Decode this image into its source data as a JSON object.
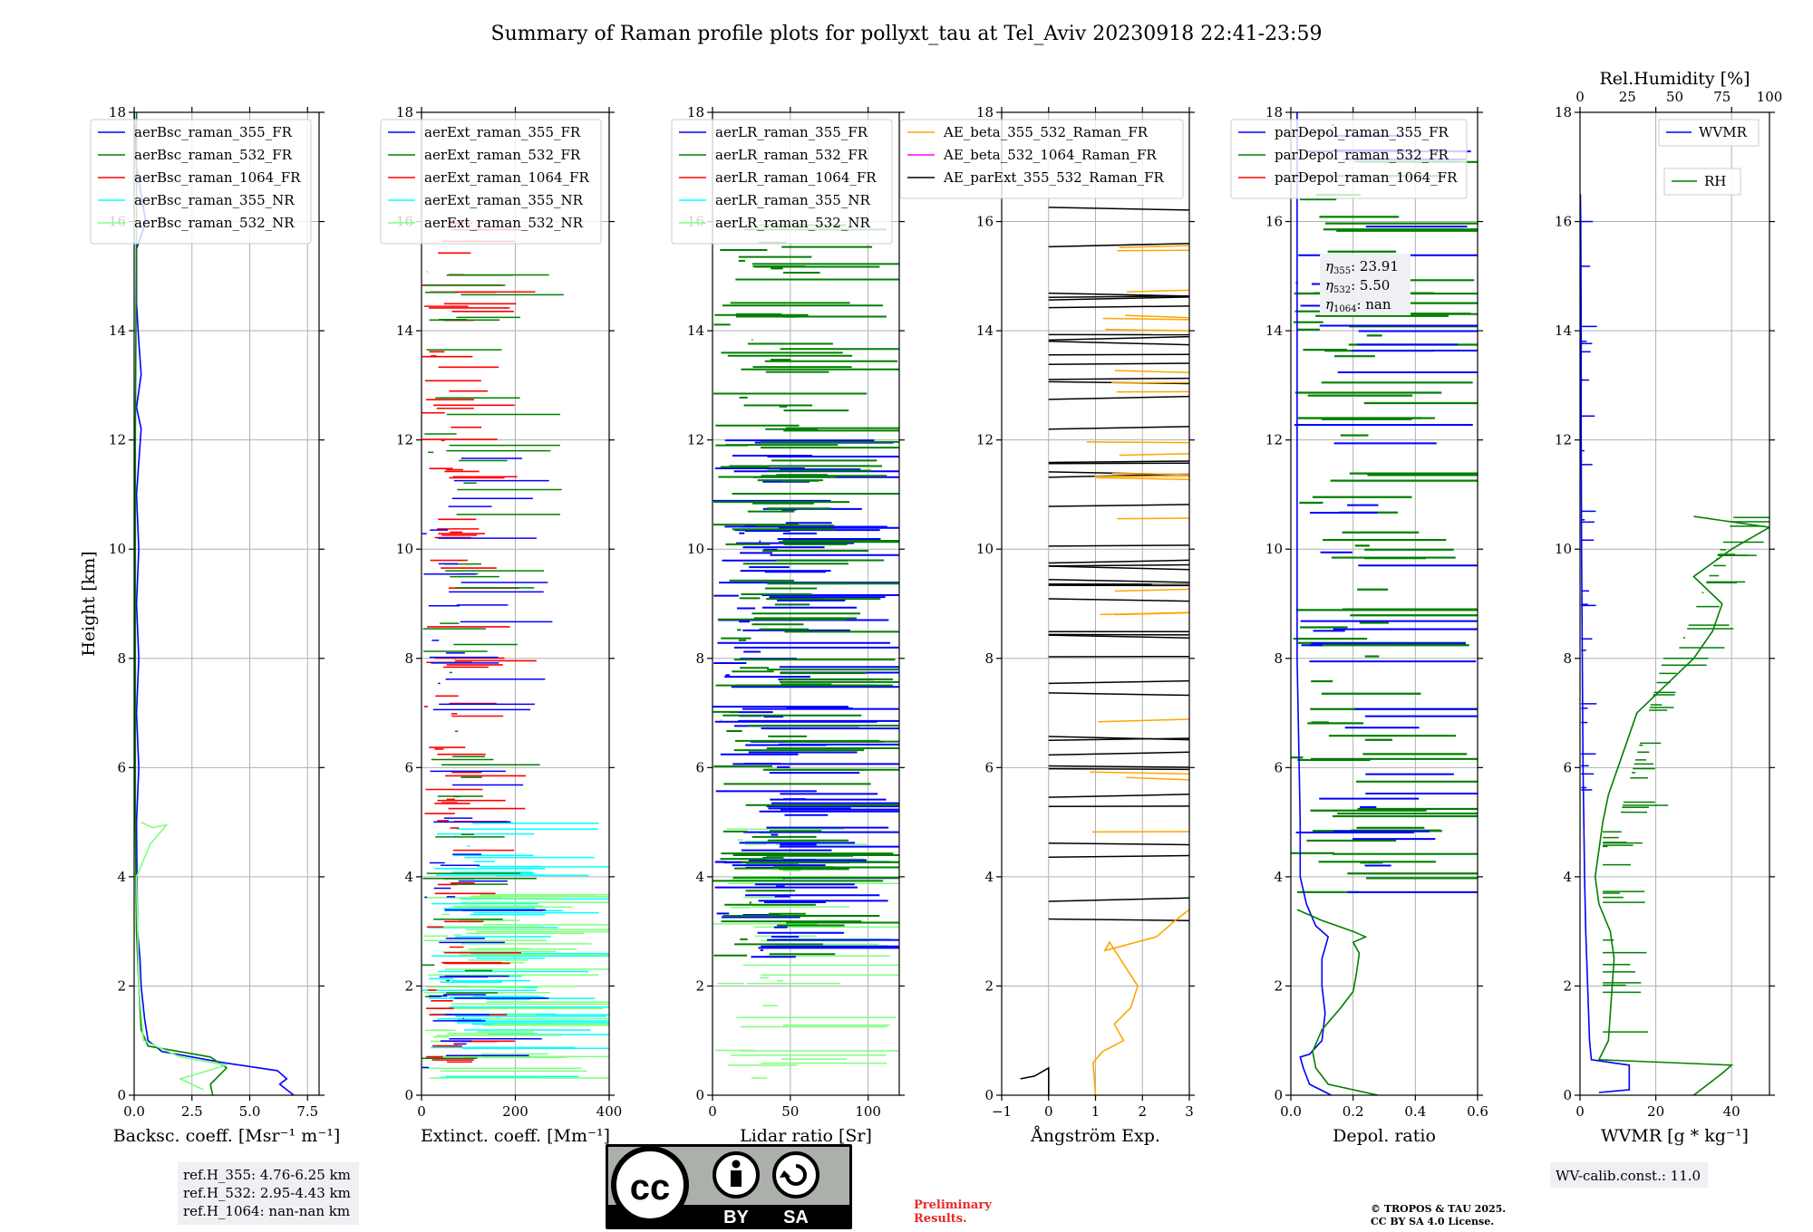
{
  "title": "Summary of Raman profile plots for pollyxt_tau at Tel_Aviv 20230918 22:41-23:59",
  "shared_y": {
    "label": "Height [km]",
    "range": [
      0,
      18
    ],
    "ticks": [
      "0",
      "2",
      "4",
      "6",
      "8",
      "10",
      "12",
      "14",
      "16",
      "18"
    ]
  },
  "chart_data": [
    {
      "type": "line",
      "id": "bsc",
      "xlabel": "Backsc. coeff. [Msr⁻¹ m⁻¹]",
      "xlim": [
        0,
        8
      ],
      "xticks": [
        {
          "v": 0,
          "t": "0.0"
        },
        {
          "v": 2.5,
          "t": "2.5"
        },
        {
          "v": 5,
          "t": "5.0"
        },
        {
          "v": 7.5,
          "t": "7.5"
        }
      ],
      "legend": "top-left",
      "series": [
        {
          "name": "aerBsc_raman_355_FR",
          "color": "#0000ff",
          "points": [
            [
              6.9,
              0
            ],
            [
              6.3,
              0.2
            ],
            [
              6.6,
              0.3
            ],
            [
              6.2,
              0.45
            ],
            [
              3.8,
              0.6
            ],
            [
              1.2,
              0.8
            ],
            [
              0.6,
              1.0
            ],
            [
              0.45,
              1.4
            ],
            [
              0.3,
              2.0
            ],
            [
              0.25,
              2.5
            ],
            [
              0.15,
              3.0
            ],
            [
              0.12,
              4
            ],
            [
              0.1,
              5
            ],
            [
              0.2,
              6
            ],
            [
              0.1,
              7
            ],
            [
              0.2,
              8
            ],
            [
              0.1,
              9
            ],
            [
              0.2,
              10
            ],
            [
              0.1,
              11
            ],
            [
              0.3,
              12.2
            ],
            [
              0.1,
              12.6
            ],
            [
              0.3,
              13.2
            ],
            [
              0.2,
              13.8
            ],
            [
              0.1,
              14.5
            ],
            [
              0.1,
              15.5
            ],
            [
              0.5,
              16.0
            ],
            [
              0.1,
              17
            ],
            [
              0.0,
              18
            ]
          ]
        },
        {
          "name": "aerBsc_raman_532_FR",
          "color": "#008000",
          "points": [
            [
              3.4,
              0
            ],
            [
              3.3,
              0.2
            ],
            [
              4.0,
              0.5
            ],
            [
              3.3,
              0.7
            ],
            [
              0.6,
              0.9
            ],
            [
              0.3,
              1.2
            ],
            [
              0.2,
              2.0
            ],
            [
              0.1,
              3
            ],
            [
              0.05,
              5
            ],
            [
              0.05,
              8
            ],
            [
              0.05,
              12
            ],
            [
              0.1,
              16
            ],
            [
              0.1,
              18
            ]
          ]
        },
        {
          "name": "aerBsc_raman_1064_FR",
          "color": "#ff0000",
          "points": []
        },
        {
          "name": "aerBsc_raman_355_NR",
          "color": "#00ffff",
          "points": []
        },
        {
          "name": "aerBsc_raman_532_NR",
          "color": "#7fff7f",
          "points": [
            [
              3.0,
              0.1
            ],
            [
              2.0,
              0.3
            ],
            [
              4.0,
              0.55
            ],
            [
              2.0,
              0.7
            ],
            [
              0.4,
              1.0
            ],
            [
              0.2,
              2
            ],
            [
              0.1,
              4
            ],
            [
              0.7,
              4.6
            ],
            [
              1.4,
              4.95
            ],
            [
              0.8,
              4.9
            ],
            [
              0.3,
              5.0
            ]
          ]
        }
      ]
    },
    {
      "type": "line",
      "id": "ext",
      "xlabel": "Extinct. coeff. [Mm⁻¹]",
      "xlim": [
        0,
        400
      ],
      "xticks": [
        {
          "v": 0,
          "t": "0"
        },
        {
          "v": 200,
          "t": "200"
        },
        {
          "v": 400,
          "t": "400"
        }
      ],
      "legend": "top-left",
      "series": [
        {
          "name": "aerExt_raman_355_FR",
          "color": "#0000ff",
          "points": []
        },
        {
          "name": "aerExt_raman_532_FR",
          "color": "#008000",
          "points": []
        },
        {
          "name": "aerExt_raman_1064_FR",
          "color": "#ff0000",
          "points": []
        },
        {
          "name": "aerExt_raman_355_NR",
          "color": "#00ffff",
          "points": []
        },
        {
          "name": "aerExt_raman_532_NR",
          "color": "#7fff7f",
          "points": []
        }
      ]
    },
    {
      "type": "line",
      "id": "lr",
      "xlabel": "Lidar ratio [Sr]",
      "xlim": [
        0,
        120
      ],
      "xticks": [
        {
          "v": 0,
          "t": "0"
        },
        {
          "v": 50,
          "t": "50"
        },
        {
          "v": 100,
          "t": "100"
        }
      ],
      "legend": "top-left",
      "series": [
        {
          "name": "aerLR_raman_355_FR",
          "color": "#0000ff",
          "points": []
        },
        {
          "name": "aerLR_raman_532_FR",
          "color": "#008000",
          "points": []
        },
        {
          "name": "aerLR_raman_1064_FR",
          "color": "#ff0000",
          "points": []
        },
        {
          "name": "aerLR_raman_355_NR",
          "color": "#00ffff",
          "points": []
        },
        {
          "name": "aerLR_raman_532_NR",
          "color": "#7fff7f",
          "points": []
        }
      ]
    },
    {
      "type": "line",
      "id": "ae",
      "xlabel": "Ångström Exp.",
      "xlim": [
        -1,
        3
      ],
      "xticks": [
        {
          "v": -1,
          "t": "−1"
        },
        {
          "v": 0,
          "t": "0"
        },
        {
          "v": 1,
          "t": "1"
        },
        {
          "v": 2,
          "t": "2"
        },
        {
          "v": 3,
          "t": "3"
        }
      ],
      "legend": "top-left",
      "series": [
        {
          "name": "AE_beta_355_532_Raman_FR",
          "color": "#ffa500",
          "points": [
            [
              1.0,
              0.0
            ],
            [
              0.95,
              0.6
            ],
            [
              1.15,
              0.8
            ],
            [
              1.6,
              1.0
            ],
            [
              1.4,
              1.3
            ],
            [
              1.75,
              1.6
            ],
            [
              1.9,
              2.0
            ],
            [
              1.6,
              2.4
            ],
            [
              1.3,
              2.8
            ],
            [
              1.2,
              2.65
            ],
            [
              2.3,
              2.9
            ],
            [
              2.7,
              3.2
            ],
            [
              3.0,
              3.4
            ]
          ]
        },
        {
          "name": "AE_beta_532_1064_Raman_FR",
          "color": "#ff00ff",
          "points": []
        },
        {
          "name": "AE_parExt_355_532_Raman_FR",
          "color": "#000000",
          "points": [
            [
              -0.6,
              0.3
            ],
            [
              -0.3,
              0.35
            ],
            [
              0.0,
              0.5
            ],
            [
              0.0,
              0.0
            ]
          ]
        }
      ]
    },
    {
      "type": "line",
      "id": "depol",
      "xlabel": "Depol. ratio",
      "xlim": [
        0,
        0.6
      ],
      "xticks": [
        {
          "v": 0,
          "t": "0.0"
        },
        {
          "v": 0.2,
          "t": "0.2"
        },
        {
          "v": 0.4,
          "t": "0.4"
        },
        {
          "v": 0.6,
          "t": "0.6"
        }
      ],
      "legend": "top-left",
      "series": [
        {
          "name": "parDepol_raman_355_FR",
          "color": "#0000ff",
          "points": [
            [
              0.13,
              0
            ],
            [
              0.06,
              0.2
            ],
            [
              0.04,
              0.5
            ],
            [
              0.03,
              0.7
            ],
            [
              0.06,
              0.75
            ],
            [
              0.1,
              1.0
            ],
            [
              0.11,
              1.5
            ],
            [
              0.1,
              2.0
            ],
            [
              0.1,
              2.5
            ],
            [
              0.12,
              2.9
            ],
            [
              0.08,
              3.1
            ],
            [
              0.05,
              3.5
            ],
            [
              0.03,
              4.0
            ],
            [
              0.03,
              5
            ],
            [
              0.02,
              8
            ],
            [
              0.02,
              12
            ],
            [
              0.02,
              16
            ],
            [
              0.02,
              18
            ]
          ]
        },
        {
          "name": "parDepol_raman_532_FR",
          "color": "#008000",
          "points": [
            [
              0.28,
              0
            ],
            [
              0.12,
              0.2
            ],
            [
              0.08,
              0.5
            ],
            [
              0.07,
              0.8
            ],
            [
              0.1,
              1.2
            ],
            [
              0.16,
              1.6
            ],
            [
              0.2,
              1.9
            ],
            [
              0.21,
              2.2
            ],
            [
              0.22,
              2.6
            ],
            [
              0.2,
              2.8
            ],
            [
              0.24,
              2.9
            ],
            [
              0.2,
              3.0
            ],
            [
              0.1,
              3.2
            ],
            [
              0.02,
              3.4
            ]
          ]
        },
        {
          "name": "parDepol_raman_1064_FR",
          "color": "#ff0000",
          "points": []
        }
      ],
      "annotation": [
        "23.91",
        "5.50",
        "nan"
      ]
    },
    {
      "type": "line",
      "id": "wv",
      "xlabel": "WVMR [g * kg⁻¹]",
      "xlim": [
        0,
        50
      ],
      "xticks": [
        {
          "v": 0,
          "t": "0"
        },
        {
          "v": 20,
          "t": "20"
        },
        {
          "v": 40,
          "t": "40"
        }
      ],
      "x2label": "Rel.Humidity [%]",
      "x2lim": [
        0,
        100
      ],
      "x2ticks": [
        {
          "v": 0,
          "t": "0"
        },
        {
          "v": 25,
          "t": "25"
        },
        {
          "v": 50,
          "t": "50"
        },
        {
          "v": 75,
          "t": "75"
        },
        {
          "v": 100,
          "t": "100"
        }
      ],
      "series": [
        {
          "name": "WVMR",
          "color": "#0000ff",
          "points": [
            [
              5,
              0.05
            ],
            [
              13,
              0.1
            ],
            [
              13,
              0.55
            ],
            [
              3,
              0.65
            ],
            [
              2.5,
              1.0
            ],
            [
              2,
              2
            ],
            [
              1.5,
              3
            ],
            [
              1.2,
              4
            ],
            [
              1.0,
              5
            ],
            [
              0.8,
              6
            ],
            [
              0.6,
              8
            ],
            [
              0.4,
              10
            ],
            [
              0.3,
              12
            ],
            [
              0.3,
              14
            ],
            [
              0.2,
              16
            ],
            [
              0.1,
              16.5
            ]
          ]
        },
        {
          "name": "RH",
          "color": "#008000",
          "points": [
            [
              60,
              0
            ],
            [
              75,
              0.4
            ],
            [
              80,
              0.55
            ],
            [
              10,
              0.65
            ],
            [
              15,
              1.0
            ],
            [
              16,
              1.5
            ],
            [
              17,
              2.0
            ],
            [
              18,
              2.5
            ],
            [
              16,
              3
            ],
            [
              10,
              3.5
            ],
            [
              8,
              4.0
            ],
            [
              10,
              4.5
            ],
            [
              12,
              5.0
            ],
            [
              15,
              5.5
            ],
            [
              20,
              6.0
            ],
            [
              25,
              6.5
            ],
            [
              30,
              7.0
            ],
            [
              45,
              7.5
            ],
            [
              60,
              8.0
            ],
            [
              70,
              8.5
            ],
            [
              75,
              9.0
            ],
            [
              60,
              9.5
            ],
            [
              80,
              10
            ],
            [
              100,
              10.4
            ],
            [
              60,
              10.6
            ]
          ]
        }
      ]
    }
  ],
  "ref_box": [
    "ref.H_355: 4.76-6.25 km",
    "ref.H_532: 2.95-4.43 km",
    "ref.H_1064: nan-nan km"
  ],
  "license_badge": {
    "by": "BY",
    "sa": "SA"
  },
  "preliminary": [
    "Preliminary",
    "Results."
  ],
  "copyright": [
    "© TROPOS & TAU 2025.",
    "CC BY SA 4.0 License."
  ],
  "wv_calib": "WV-calib.const.: 11.0"
}
